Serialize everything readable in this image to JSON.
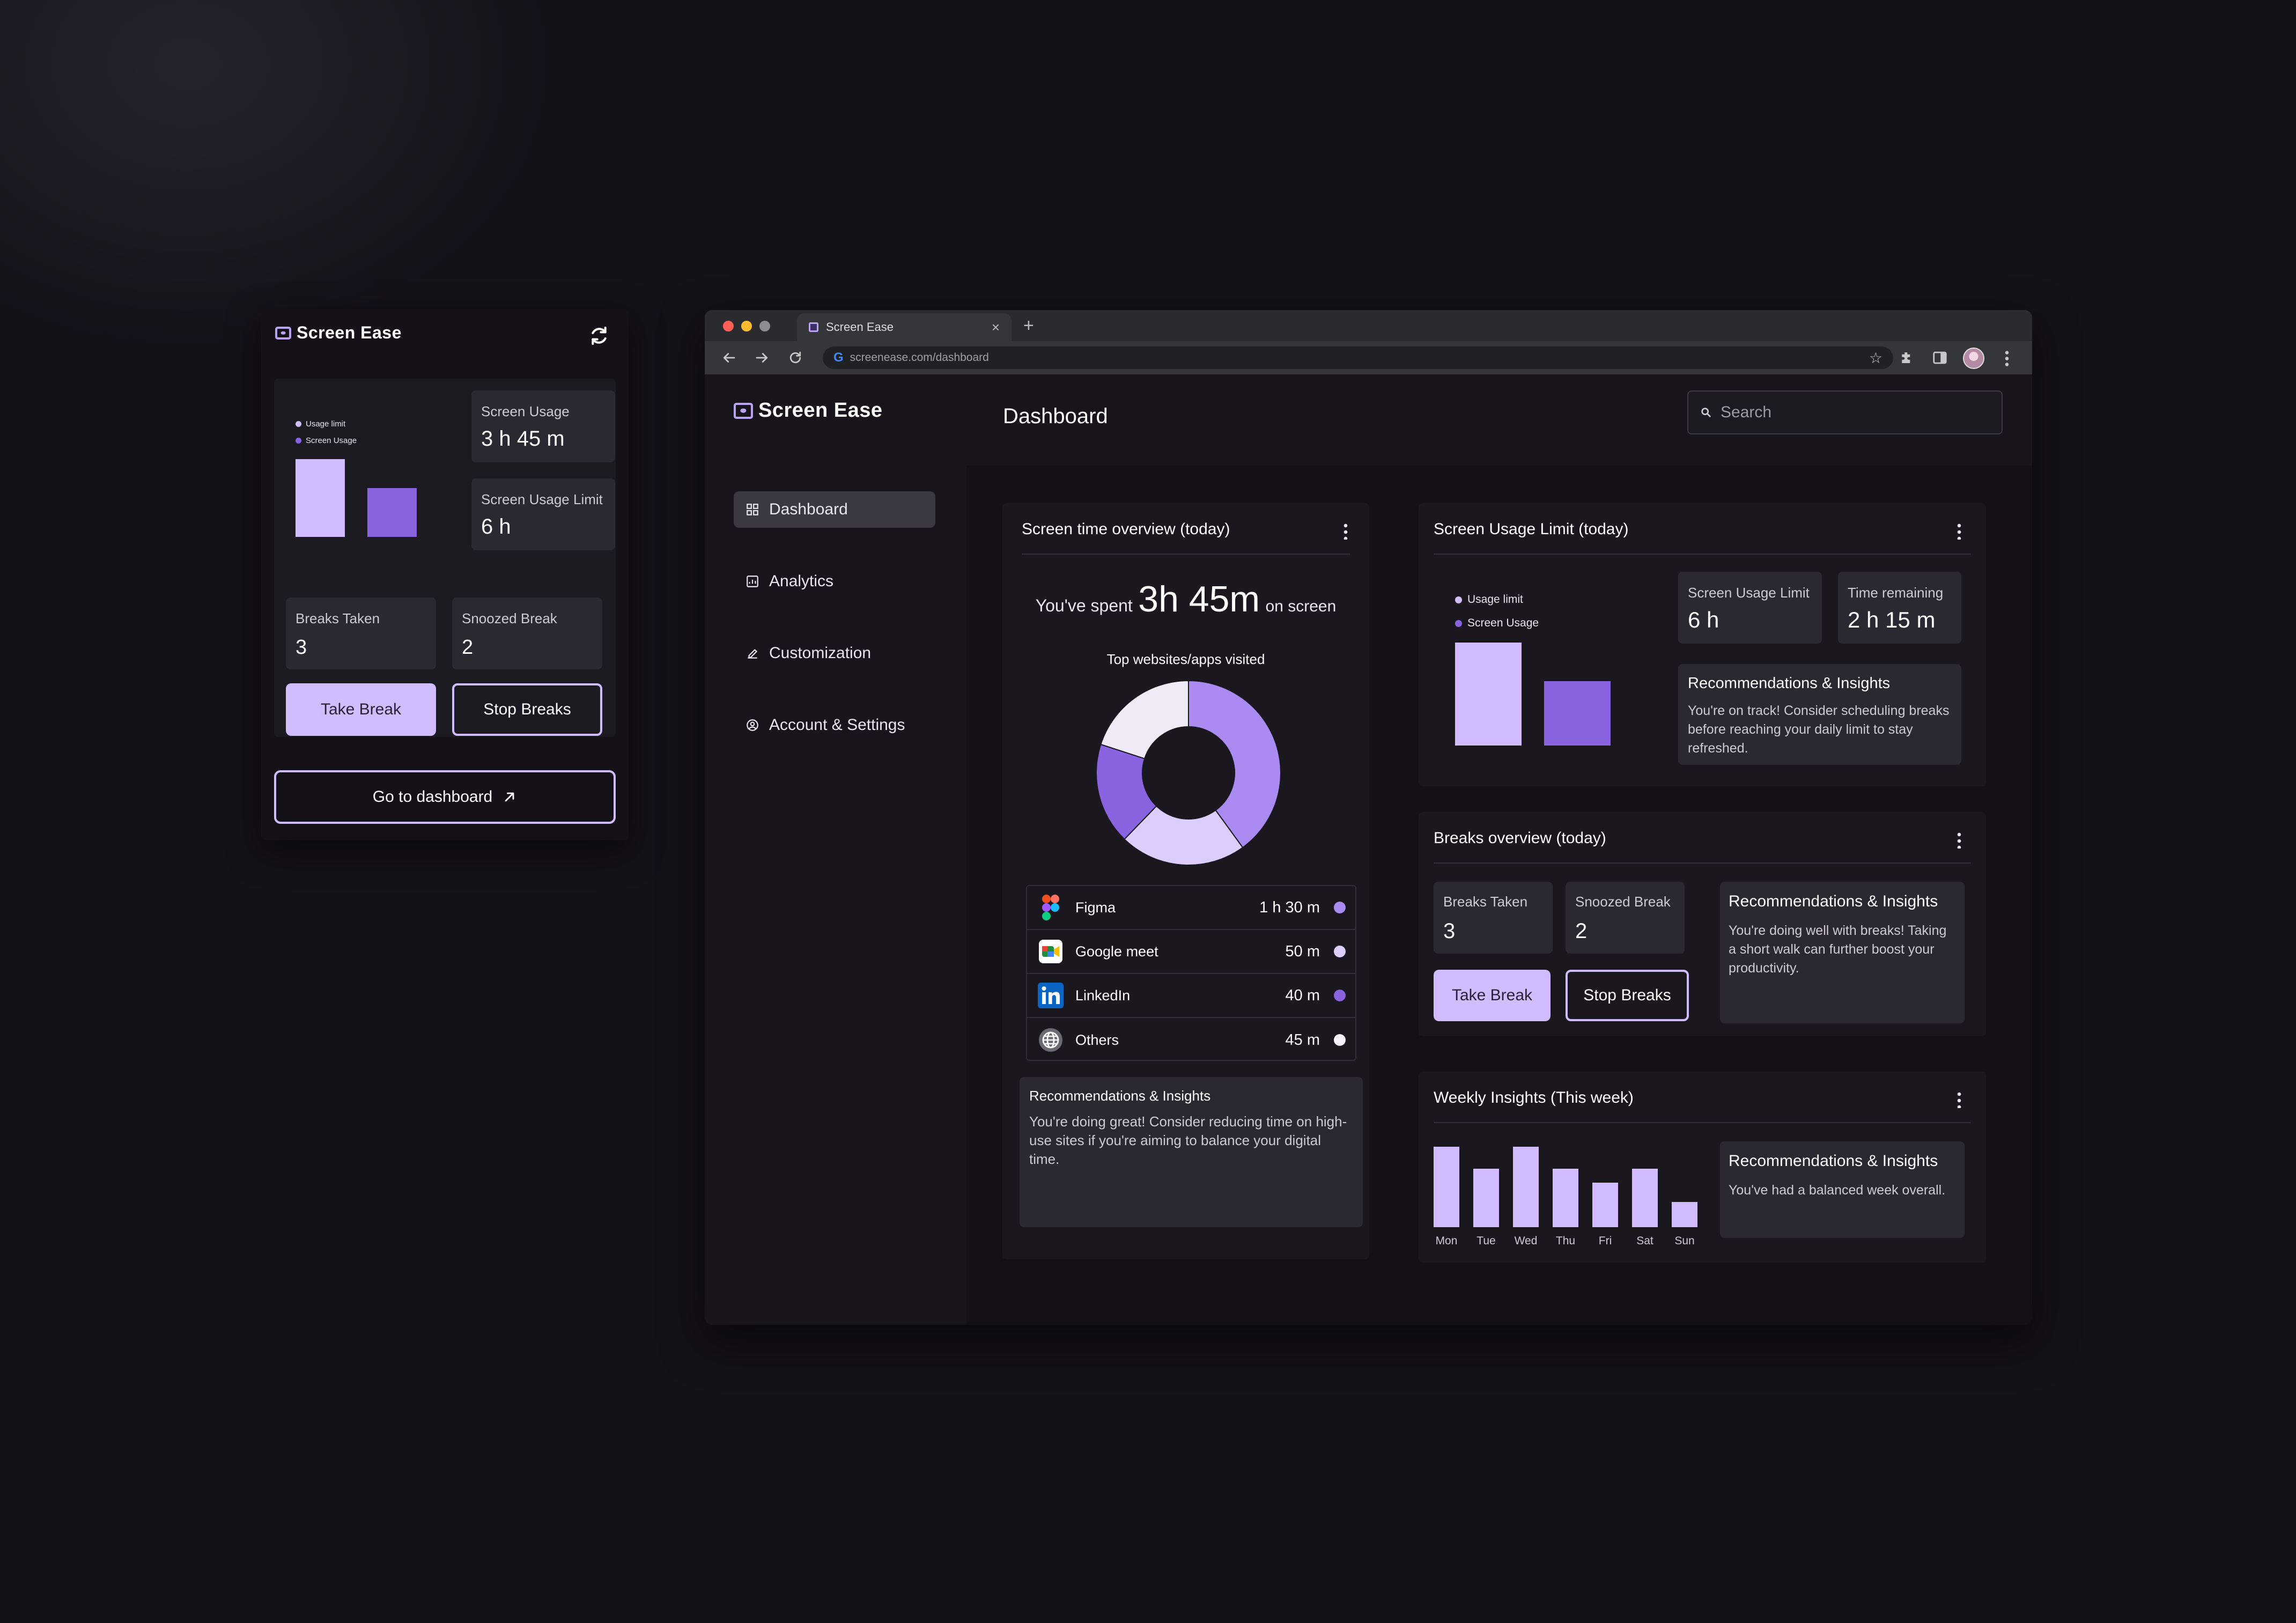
{
  "popup": {
    "brand": "Screen Ease",
    "legend": {
      "limit": "Usage limit",
      "usage": "Screen Usage"
    },
    "chart_data": {
      "type": "bar",
      "categories": [
        "Usage limit",
        "Screen Usage"
      ],
      "values": [
        6,
        3.75
      ],
      "ylim": [
        0,
        6
      ]
    },
    "screen_usage": {
      "label": "Screen Usage",
      "value": "3 h 45 m"
    },
    "usage_limit": {
      "label": "Screen Usage Limit",
      "value": "6 h"
    },
    "breaks_taken": {
      "label": "Breaks Taken",
      "value": "3"
    },
    "snoozed": {
      "label": "Snoozed Break",
      "value": "2"
    },
    "take_break": "Take Break",
    "stop_breaks": "Stop Breaks",
    "go_dashboard": "Go to dashboard"
  },
  "browser": {
    "tab_title": "Screen Ease",
    "url": "screenease.com/dashboard"
  },
  "app": {
    "brand": "Screen Ease",
    "page_title": "Dashboard",
    "search_placeholder": "Search",
    "nav": [
      {
        "label": "Dashboard",
        "icon": "grid-icon",
        "active": true
      },
      {
        "label": "Analytics",
        "icon": "chart-icon",
        "active": false
      },
      {
        "label": "Customization",
        "icon": "pencil-icon",
        "active": false
      },
      {
        "label": "Account & Settings",
        "icon": "user-circle-icon",
        "active": false
      }
    ],
    "overview": {
      "title": "Screen time overview (today)",
      "spent_prefix": "You've spent",
      "spent_value": "3h 45m",
      "spent_suffix": "on screen",
      "top_title": "Top websites/apps visited",
      "chart_data": {
        "type": "pie",
        "categories": [
          "Figma",
          "Google meet",
          "LinkedIn",
          "Others"
        ],
        "values": [
          90,
          50,
          40,
          45
        ],
        "colors": [
          "#a98bf2",
          "#dccdfc",
          "#8a63e0",
          "#f0ecf7"
        ]
      },
      "apps": [
        {
          "name": "Figma",
          "time": "1 h 30 m",
          "color": "#a98bf2",
          "icon": "figma-icon"
        },
        {
          "name": "Google meet",
          "time": "50 m",
          "color": "#dccdfc",
          "icon": "google-meet-icon"
        },
        {
          "name": "LinkedIn",
          "time": "40 m",
          "color": "#8a63e0",
          "icon": "linkedin-icon"
        },
        {
          "name": "Others",
          "time": "45 m",
          "color": "#f4f1fa",
          "icon": "globe-icon"
        }
      ],
      "rec_title": "Recommendations & Insights",
      "rec_text": "You're doing great! Consider reducing time on high-use sites if you're aiming to balance your digital time."
    },
    "limit": {
      "title": "Screen Usage Limit (today)",
      "legend": {
        "limit": "Usage limit",
        "usage": "Screen Usage"
      },
      "chart_data": {
        "type": "bar",
        "categories": [
          "Usage limit",
          "Screen Usage"
        ],
        "values": [
          6,
          3.75
        ],
        "ylim": [
          0,
          6
        ]
      },
      "usage_limit": {
        "label": "Screen Usage Limit",
        "value": "6 h"
      },
      "remaining": {
        "label": "Time remaining",
        "value": "2 h 15 m"
      },
      "rec_title": "Recommendations & Insights",
      "rec_text": "You're on track! Consider scheduling breaks before reaching your daily limit to stay refreshed."
    },
    "breaks": {
      "title": "Breaks overview (today)",
      "taken": {
        "label": "Breaks Taken",
        "value": "3"
      },
      "snoozed": {
        "label": "Snoozed Break",
        "value": "2"
      },
      "take_break": "Take Break",
      "stop_breaks": "Stop Breaks",
      "rec_title": "Recommendations & Insights",
      "rec_text": "You're doing well with breaks! Taking a short walk can further boost your productivity."
    },
    "weekly": {
      "title": "Weekly Insights (This week)",
      "chart_data": {
        "type": "bar",
        "categories": [
          "Mon",
          "Tue",
          "Wed",
          "Thu",
          "Fri",
          "Sat",
          "Sun"
        ],
        "values": [
          145,
          105,
          145,
          105,
          80,
          105,
          45
        ]
      },
      "rec_title": "Recommendations & Insights",
      "rec_text": "You've had a balanced week overall."
    }
  }
}
